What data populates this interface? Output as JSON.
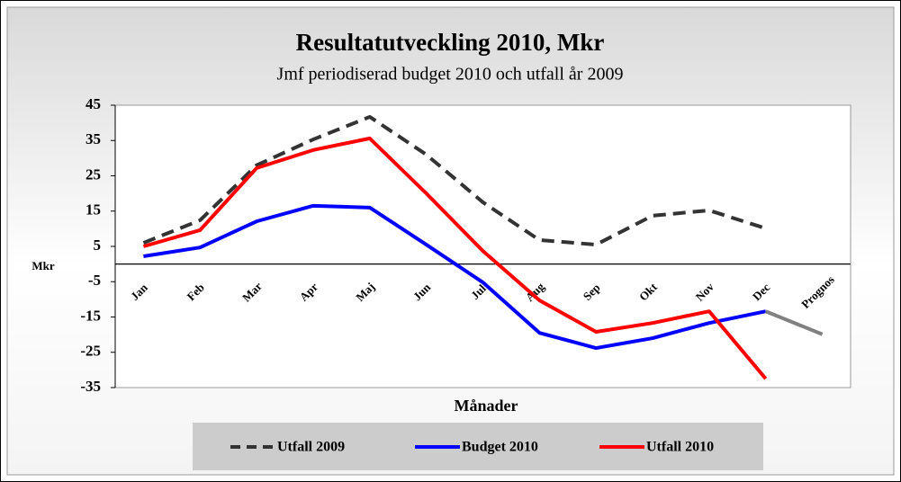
{
  "chart_data": {
    "type": "line",
    "title": "Resultatutveckling 2010, Mkr",
    "subtitle": "Jmf periodiserad budget 2010 och utfall år 2009",
    "y_label": "Mkr",
    "x_label": "Månader",
    "categories": [
      "Jan",
      "Feb",
      "Mar",
      "Apr",
      "Maj",
      "Jun",
      "Jul",
      "Aug",
      "Sep",
      "Okt",
      "Nov",
      "Dec",
      "Prognos"
    ],
    "ylim": [
      -35,
      45
    ],
    "yticks": [
      45,
      35,
      25,
      15,
      5,
      -5,
      -15,
      -25,
      -35
    ],
    "series": [
      {
        "name": "Utfall 2009",
        "color": "#333333",
        "dash": true,
        "values": [
          6.0,
          12.4,
          28.0,
          35.3,
          41.7,
          31.0,
          17.5,
          6.8,
          5.5,
          13.7,
          15.2,
          10.1,
          null
        ]
      },
      {
        "name": "Budget 2010",
        "color": "#0000ff",
        "dash": false,
        "values": [
          2.2,
          4.7,
          12.1,
          16.5,
          16.0,
          5.5,
          -5.2,
          -19.5,
          -23.8,
          -21.0,
          -16.7,
          -13.4,
          null
        ]
      },
      {
        "name": "Utfall 2010",
        "color": "#ff0000",
        "dash": false,
        "values": [
          5.0,
          9.6,
          27.2,
          32.3,
          35.6,
          20.0,
          3.7,
          -10.3,
          -19.2,
          -16.7,
          -13.4,
          -32.5,
          null
        ]
      },
      {
        "color": "#808080",
        "dash": false,
        "values": [
          null,
          null,
          null,
          null,
          null,
          null,
          null,
          null,
          null,
          null,
          null,
          -13.4,
          -19.9
        ]
      }
    ]
  }
}
